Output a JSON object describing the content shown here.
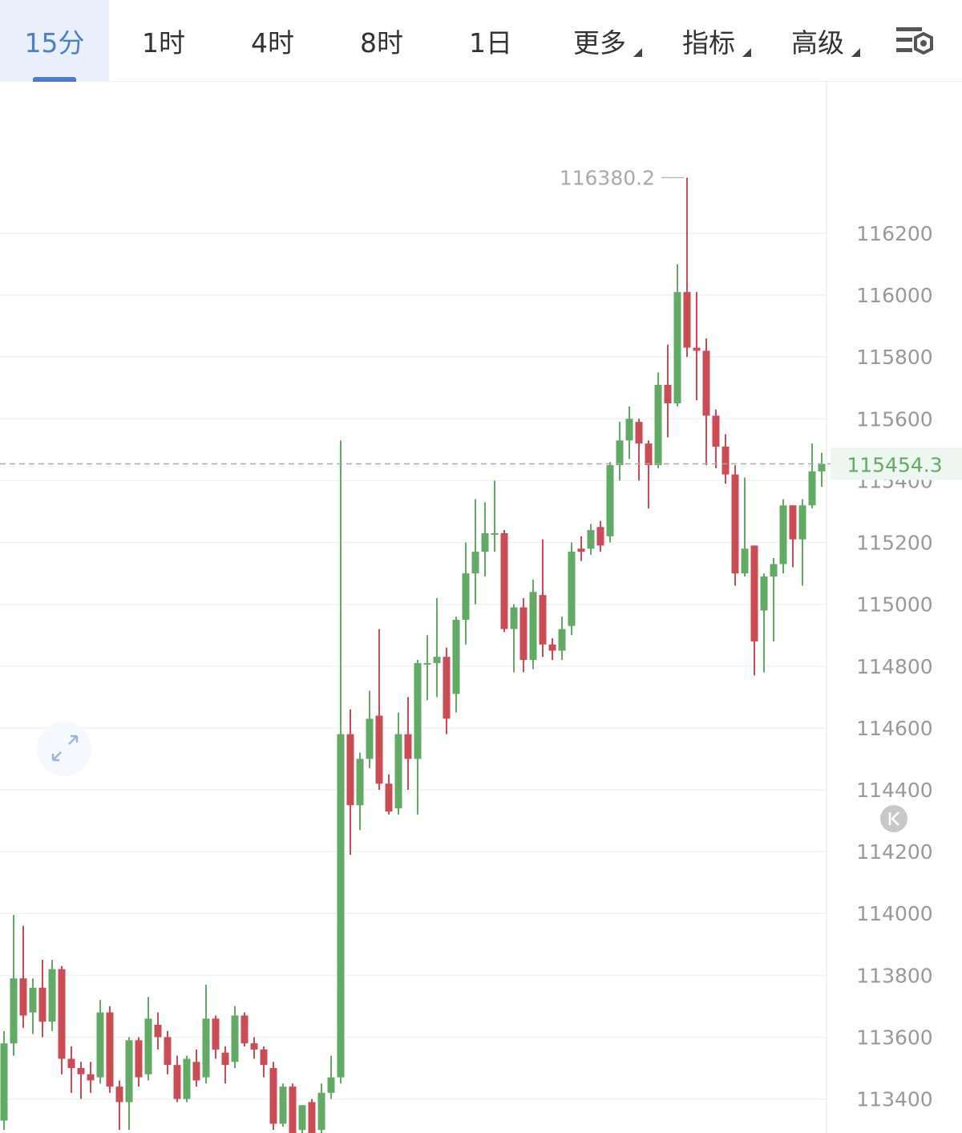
{
  "tabs": [
    "15分",
    "1时",
    "4时",
    "8时",
    "1日",
    "更多",
    "指标",
    "高级"
  ],
  "chart_data": {
    "type": "candlestick",
    "up_color": "#62ab67",
    "down_color": "#cc4b55",
    "grid": true,
    "ylim": [
      113290,
      116690
    ],
    "yticks": [
      113400,
      113600,
      113800,
      114000,
      114200,
      114400,
      114600,
      114800,
      115000,
      115200,
      115400,
      115600,
      115800,
      116000,
      116200
    ],
    "open": [
      113330,
      113580,
      113790,
      113680,
      113760,
      113650,
      113820,
      113530,
      113500,
      113480,
      113470,
      113680,
      113440,
      113390,
      113590,
      113480,
      113640,
      113600,
      113510,
      113400,
      113520,
      113470,
      113660,
      113550,
      113520,
      113670,
      113580,
      113560,
      113500,
      113320,
      113440,
      113300,
      113390,
      113300,
      113420,
      113470,
      114580,
      114350,
      114500,
      114640,
      114420,
      114340,
      114580,
      114500,
      114810,
      114810,
      114830,
      114710,
      114950,
      115100,
      115170,
      115230,
      115230,
      114920,
      114990,
      114820,
      115030,
      114870,
      114850,
      114930,
      115180,
      115180,
      115250,
      115220,
      115450,
      115530,
      115590,
      115520,
      115450,
      115710,
      115650,
      116010,
      115830,
      115820,
      115610,
      115510,
      115420,
      115100,
      115190,
      114980,
      115090,
      115130,
      115320,
      115210,
      115320,
      115430
    ],
    "high": [
      113620,
      113995,
      113960,
      113790,
      113850,
      113850,
      113830,
      113570,
      113520,
      113520,
      113720,
      113700,
      113460,
      113600,
      113600,
      113730,
      113680,
      113620,
      113540,
      113540,
      113560,
      113770,
      113670,
      113570,
      113700,
      113680,
      113600,
      113570,
      113520,
      113450,
      113450,
      113380,
      113400,
      113450,
      113540,
      115530,
      114660,
      114520,
      114720,
      114920,
      114450,
      114650,
      114700,
      114820,
      114900,
      115020,
      114860,
      114960,
      115200,
      115340,
      115330,
      115400,
      115240,
      115000,
      115020,
      115080,
      115210,
      114890,
      114960,
      115200,
      115220,
      115260,
      115270,
      115460,
      115590,
      115640,
      115600,
      115530,
      115750,
      115840,
      116100,
      116380.2,
      116010,
      115860,
      115630,
      115550,
      115450,
      115410,
      115190,
      115100,
      115150,
      115340,
      115320,
      115340,
      115520,
      115490
    ],
    "low": [
      113300,
      113540,
      113630,
      113610,
      113600,
      113620,
      113480,
      113420,
      113400,
      113420,
      113450,
      113420,
      113300,
      113300,
      113440,
      113460,
      113560,
      113480,
      113390,
      113390,
      113440,
      113450,
      113530,
      113450,
      113500,
      113570,
      113530,
      113470,
      113300,
      113310,
      113290,
      113290,
      113290,
      113290,
      113400,
      113450,
      114190,
      114270,
      114470,
      114400,
      114320,
      114320,
      114400,
      114320,
      114690,
      114700,
      114580,
      114650,
      114870,
      115000,
      115090,
      115170,
      114910,
      114780,
      114780,
      114790,
      114830,
      114820,
      114820,
      114900,
      115140,
      115160,
      115170,
      115200,
      115400,
      115470,
      115400,
      115310,
      115440,
      115540,
      115640,
      115800,
      115660,
      115450,
      115440,
      115390,
      115060,
      115090,
      114770,
      114780,
      114880,
      115100,
      115120,
      115060,
      115310,
      115380
    ],
    "close": [
      113580,
      113790,
      113670,
      113760,
      113650,
      113820,
      113530,
      113500,
      113480,
      113460,
      113680,
      113440,
      113390,
      113590,
      113470,
      113660,
      113600,
      113510,
      113400,
      113530,
      113460,
      113660,
      113560,
      113510,
      113670,
      113580,
      113560,
      113510,
      113320,
      113440,
      113290,
      113380,
      113290,
      113420,
      113470,
      114580,
      114350,
      114500,
      114630,
      114420,
      114330,
      114580,
      114500,
      114810,
      114810,
      114830,
      114630,
      114950,
      115100,
      115170,
      115230,
      115230,
      114920,
      114990,
      114820,
      115040,
      114870,
      114850,
      114920,
      115170,
      115170,
      115240,
      115190,
      115450,
      115530,
      115600,
      115520,
      115450,
      115710,
      115650,
      116010,
      115830,
      115820,
      115610,
      115510,
      115420,
      115100,
      115180,
      114880,
      115090,
      115130,
      115320,
      115210,
      115320,
      115430,
      115454.3
    ]
  }
}
